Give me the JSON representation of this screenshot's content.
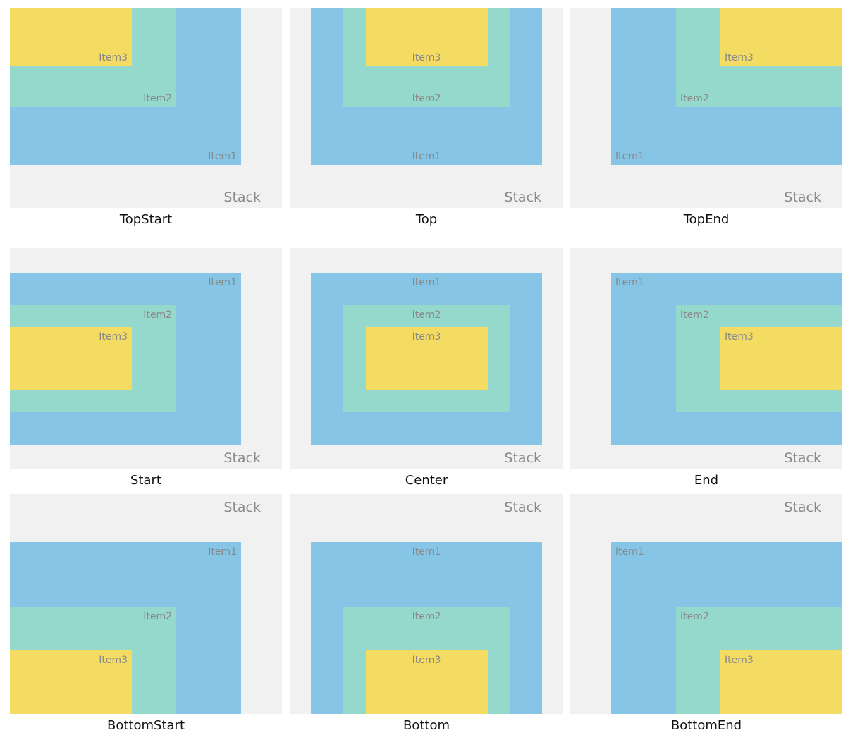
{
  "panels": [
    {
      "caption": "TopStart",
      "stack": "Stack",
      "items": [
        "Item1",
        "Item2",
        "Item3"
      ]
    },
    {
      "caption": "Top",
      "stack": "Stack",
      "items": [
        "Item1",
        "Item2",
        "Item3"
      ]
    },
    {
      "caption": "TopEnd",
      "stack": "Stack",
      "items": [
        "Item1",
        "Item2",
        "Item3"
      ]
    },
    {
      "caption": "Start",
      "stack": "Stack",
      "items": [
        "Item1",
        "Item2",
        "Item3"
      ]
    },
    {
      "caption": "Center",
      "stack": "Stack",
      "items": [
        "Item1",
        "Item2",
        "Item3"
      ]
    },
    {
      "caption": "End",
      "stack": "Stack",
      "items": [
        "Item1",
        "Item2",
        "Item3"
      ]
    },
    {
      "caption": "BottomStart",
      "stack": "Stack",
      "items": [
        "Item1",
        "Item2",
        "Item3"
      ]
    },
    {
      "caption": "Bottom",
      "stack": "Stack",
      "items": [
        "Item1",
        "Item2",
        "Item3"
      ]
    },
    {
      "caption": "BottomEnd",
      "stack": "Stack",
      "items": [
        "Item1",
        "Item2",
        "Item3"
      ]
    }
  ]
}
